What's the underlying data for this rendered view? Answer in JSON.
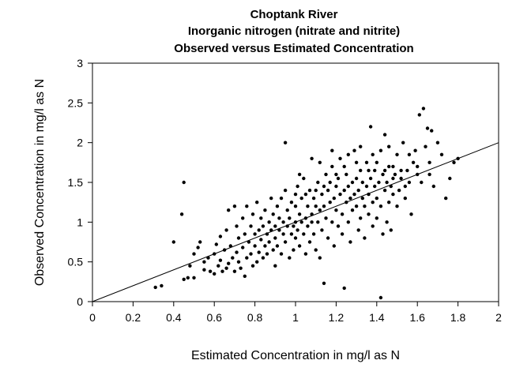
{
  "chart_data": {
    "type": "scatter",
    "title": [
      "Choptank River",
      "Inorganic nitrogen (nitrate and nitrite)",
      "Observed versus Estimated Concentration"
    ],
    "xlabel": "Estimated Concentration in mg/l as N",
    "ylabel": "Observed Concentration in mg/l as N",
    "xlim": [
      0,
      2
    ],
    "ylim": [
      0,
      3
    ],
    "xticks": [
      0,
      0.2,
      0.4,
      0.6,
      0.8,
      1,
      1.2,
      1.4,
      1.6,
      1.8,
      2
    ],
    "xtick_labels": [
      "0",
      "0.2",
      "0.4",
      "0.6",
      "0.8",
      "1",
      "1.2",
      "1.4",
      "1.6",
      "1.8",
      "2"
    ],
    "yticks": [
      0,
      0.5,
      1,
      1.5,
      2,
      2.5,
      3
    ],
    "ytick_labels": [
      "0",
      "0.5",
      "1",
      "1.5",
      "2",
      "2.5",
      "3"
    ],
    "grid": false,
    "reference_line": {
      "x": [
        0,
        2
      ],
      "y": [
        0,
        2
      ]
    },
    "points": [
      [
        0.31,
        0.18
      ],
      [
        0.34,
        0.2
      ],
      [
        0.4,
        0.75
      ],
      [
        0.44,
        1.1
      ],
      [
        0.45,
        1.5
      ],
      [
        0.45,
        0.28
      ],
      [
        0.47,
        0.3
      ],
      [
        0.48,
        0.45
      ],
      [
        0.5,
        0.3
      ],
      [
        0.5,
        0.6
      ],
      [
        0.52,
        0.68
      ],
      [
        0.53,
        0.75
      ],
      [
        0.55,
        0.4
      ],
      [
        0.55,
        0.5
      ],
      [
        0.57,
        0.55
      ],
      [
        0.58,
        0.38
      ],
      [
        0.6,
        0.35
      ],
      [
        0.6,
        0.6
      ],
      [
        0.61,
        0.72
      ],
      [
        0.62,
        0.45
      ],
      [
        0.63,
        0.52
      ],
      [
        0.63,
        0.82
      ],
      [
        0.64,
        0.38
      ],
      [
        0.65,
        0.65
      ],
      [
        0.66,
        0.42
      ],
      [
        0.66,
        0.9
      ],
      [
        0.67,
        0.48
      ],
      [
        0.67,
        1.15
      ],
      [
        0.68,
        0.7
      ],
      [
        0.69,
        0.55
      ],
      [
        0.7,
        0.38
      ],
      [
        0.7,
        1.2
      ],
      [
        0.71,
        0.62
      ],
      [
        0.71,
        0.95
      ],
      [
        0.72,
        0.5
      ],
      [
        0.72,
        0.8
      ],
      [
        0.73,
        0.42
      ],
      [
        0.74,
        0.68
      ],
      [
        0.74,
        1.05
      ],
      [
        0.75,
        0.32
      ],
      [
        0.75,
        0.85
      ],
      [
        0.76,
        0.55
      ],
      [
        0.76,
        1.2
      ],
      [
        0.77,
        0.75
      ],
      [
        0.78,
        0.6
      ],
      [
        0.78,
        0.95
      ],
      [
        0.79,
        0.45
      ],
      [
        0.79,
        1.1
      ],
      [
        0.8,
        0.7
      ],
      [
        0.8,
        0.85
      ],
      [
        0.81,
        0.5
      ],
      [
        0.81,
        1.25
      ],
      [
        0.82,
        0.62
      ],
      [
        0.82,
        0.9
      ],
      [
        0.83,
        0.78
      ],
      [
        0.83,
        1.05
      ],
      [
        0.84,
        0.55
      ],
      [
        0.84,
        0.95
      ],
      [
        0.85,
        0.7
      ],
      [
        0.85,
        1.15
      ],
      [
        0.86,
        0.85
      ],
      [
        0.86,
        0.6
      ],
      [
        0.87,
        1.0
      ],
      [
        0.87,
        0.75
      ],
      [
        0.88,
        0.9
      ],
      [
        0.88,
        1.3
      ],
      [
        0.89,
        0.65
      ],
      [
        0.89,
        1.1
      ],
      [
        0.9,
        0.8
      ],
      [
        0.9,
        0.95
      ],
      [
        0.9,
        0.45
      ],
      [
        0.91,
        1.2
      ],
      [
        0.91,
        0.7
      ],
      [
        0.92,
        0.9
      ],
      [
        0.92,
        1.05
      ],
      [
        0.93,
        1.3
      ],
      [
        0.93,
        0.6
      ],
      [
        0.94,
        0.85
      ],
      [
        0.94,
        1.0
      ],
      [
        0.95,
        1.4
      ],
      [
        0.95,
        2.0
      ],
      [
        0.95,
        0.75
      ],
      [
        0.96,
        0.95
      ],
      [
        0.96,
        1.15
      ],
      [
        0.97,
        0.55
      ],
      [
        0.97,
        1.05
      ],
      [
        0.98,
        0.85
      ],
      [
        0.98,
        1.25
      ],
      [
        0.99,
        0.95
      ],
      [
        0.99,
        0.65
      ],
      [
        1.0,
        1.0
      ],
      [
        1.0,
        1.2
      ],
      [
        1.0,
        0.8
      ],
      [
        1.01,
        1.45
      ],
      [
        1.01,
        0.9
      ],
      [
        1.02,
        1.1
      ],
      [
        1.02,
        0.7
      ],
      [
        1.03,
        1.0
      ],
      [
        1.03,
        1.3
      ],
      [
        1.04,
        0.85
      ],
      [
        1.04,
        1.55
      ],
      [
        1.05,
        1.05
      ],
      [
        1.05,
        0.6
      ],
      [
        1.06,
        1.2
      ],
      [
        1.06,
        0.95
      ],
      [
        1.07,
        1.4
      ],
      [
        1.07,
        0.75
      ],
      [
        1.08,
        1.1
      ],
      [
        1.08,
        1.0
      ],
      [
        1.09,
        1.3
      ],
      [
        1.09,
        0.85
      ],
      [
        1.1,
        1.2
      ],
      [
        1.1,
        0.65
      ],
      [
        1.11,
        1.5
      ],
      [
        1.11,
        1.0
      ],
      [
        1.12,
        1.15
      ],
      [
        1.12,
        0.55
      ],
      [
        1.13,
        1.35
      ],
      [
        1.13,
        0.9
      ],
      [
        1.14,
        1.2
      ],
      [
        1.14,
        0.23
      ],
      [
        1.15,
        1.6
      ],
      [
        1.15,
        1.05
      ],
      [
        1.16,
        1.4
      ],
      [
        1.16,
        0.8
      ],
      [
        1.17,
        1.25
      ],
      [
        1.17,
        1.5
      ],
      [
        1.18,
        1.0
      ],
      [
        1.18,
        1.7
      ],
      [
        1.19,
        1.3
      ],
      [
        1.19,
        0.7
      ],
      [
        1.2,
        1.15
      ],
      [
        1.2,
        1.45
      ],
      [
        1.21,
        0.95
      ],
      [
        1.21,
        1.55
      ],
      [
        1.22,
        1.35
      ],
      [
        1.22,
        1.8
      ],
      [
        1.23,
        1.1
      ],
      [
        1.23,
        0.85
      ],
      [
        1.24,
        1.4
      ],
      [
        1.24,
        0.17
      ],
      [
        1.25,
        1.25
      ],
      [
        1.25,
        1.6
      ],
      [
        1.26,
        1.0
      ],
      [
        1.26,
        1.45
      ],
      [
        1.27,
        1.3
      ],
      [
        1.27,
        0.75
      ],
      [
        1.28,
        1.5
      ],
      [
        1.28,
        1.15
      ],
      [
        1.29,
        1.35
      ],
      [
        1.29,
        1.9
      ],
      [
        1.3,
        1.2
      ],
      [
        1.3,
        1.55
      ],
      [
        1.31,
        0.9
      ],
      [
        1.31,
        1.4
      ],
      [
        1.32,
        1.65
      ],
      [
        1.32,
        1.05
      ],
      [
        1.33,
        1.3
      ],
      [
        1.33,
        1.5
      ],
      [
        1.34,
        1.2
      ],
      [
        1.34,
        0.8
      ],
      [
        1.35,
        1.45
      ],
      [
        1.35,
        1.75
      ],
      [
        1.36,
        1.1
      ],
      [
        1.36,
        1.35
      ],
      [
        1.37,
        2.2
      ],
      [
        1.37,
        1.55
      ],
      [
        1.38,
        1.25
      ],
      [
        1.38,
        0.95
      ],
      [
        1.39,
        1.45
      ],
      [
        1.39,
        1.65
      ],
      [
        1.4,
        1.3
      ],
      [
        1.4,
        1.05
      ],
      [
        1.41,
        1.5
      ],
      [
        1.42,
        0.05
      ],
      [
        1.42,
        1.2
      ],
      [
        1.43,
        1.6
      ],
      [
        1.43,
        0.85
      ],
      [
        1.44,
        1.4
      ],
      [
        1.44,
        2.1
      ],
      [
        1.45,
        1.5
      ],
      [
        1.45,
        1.0
      ],
      [
        1.46,
        1.25
      ],
      [
        1.46,
        1.7
      ],
      [
        1.47,
        1.45
      ],
      [
        1.47,
        0.9
      ],
      [
        1.48,
        1.55
      ],
      [
        1.48,
        1.35
      ],
      [
        1.49,
        1.6
      ],
      [
        1.5,
        1.2
      ],
      [
        1.5,
        1.85
      ],
      [
        1.51,
        1.4
      ],
      [
        1.52,
        1.55
      ],
      [
        1.53,
        2.0
      ],
      [
        1.54,
        1.3
      ],
      [
        1.55,
        1.65
      ],
      [
        1.56,
        1.5
      ],
      [
        1.57,
        1.1
      ],
      [
        1.58,
        1.75
      ],
      [
        1.59,
        1.9
      ],
      [
        1.6,
        1.6
      ],
      [
        1.61,
        2.35
      ],
      [
        1.62,
        1.5
      ],
      [
        1.63,
        2.43
      ],
      [
        1.64,
        1.95
      ],
      [
        1.65,
        2.18
      ],
      [
        1.66,
        1.6
      ],
      [
        1.67,
        2.15
      ],
      [
        1.68,
        1.45
      ],
      [
        1.7,
        2.0
      ],
      [
        1.72,
        1.85
      ],
      [
        1.74,
        1.3
      ],
      [
        1.76,
        1.55
      ],
      [
        1.78,
        1.75
      ],
      [
        1.8,
        1.8
      ],
      [
        1.02,
        1.6
      ],
      [
        1.08,
        1.8
      ],
      [
        1.12,
        1.75
      ],
      [
        1.18,
        1.9
      ],
      [
        1.26,
        1.85
      ],
      [
        1.32,
        1.95
      ],
      [
        1.38,
        1.85
      ],
      [
        1.42,
        1.9
      ],
      [
        1.46,
        1.95
      ],
      [
        1.52,
        1.65
      ],
      [
        1.56,
        1.85
      ],
      [
        1.6,
        1.7
      ],
      [
        1.66,
        1.75
      ],
      [
        1.0,
        1.35
      ],
      [
        1.05,
        1.35
      ],
      [
        1.1,
        1.4
      ],
      [
        1.14,
        1.45
      ],
      [
        1.2,
        1.6
      ],
      [
        1.24,
        1.7
      ],
      [
        1.3,
        1.75
      ],
      [
        1.36,
        1.65
      ],
      [
        1.4,
        1.75
      ],
      [
        1.44,
        1.65
      ],
      [
        1.48,
        1.7
      ],
      [
        1.54,
        1.45
      ]
    ]
  }
}
